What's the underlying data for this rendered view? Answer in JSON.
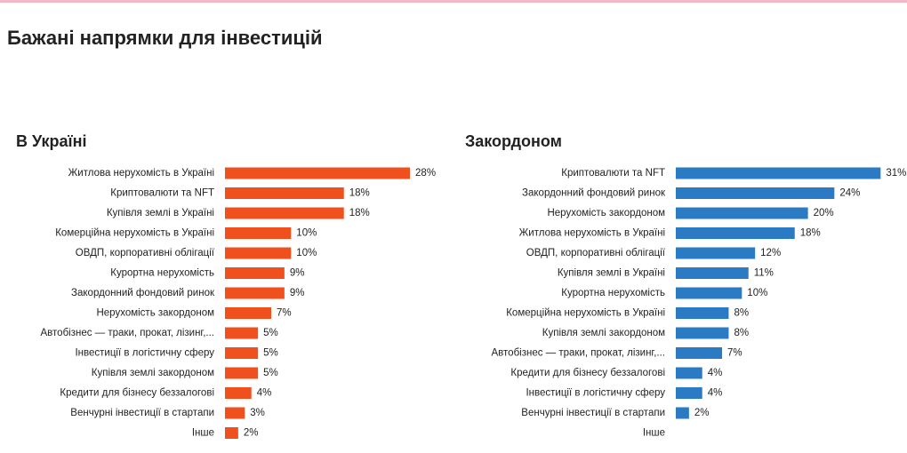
{
  "title": "Бажані напрямки для інвестицій",
  "chart_data": [
    {
      "type": "hbar",
      "title": "В Україні",
      "color": "#f0501e",
      "categories": [
        "Житлова нерухомість в Україні",
        "Криптовалюти та NFT",
        "Купівля землі в Україні",
        "Комерційна нерухомість в Україні",
        "ОВДП, корпоративні облігації",
        "Курортна нерухомість",
        "Закордонний фондовий ринок",
        "Нерухомість закордоном",
        "Автобізнес — траки, прокат, лізинг,...",
        "Інвестиції в логістичну сферу",
        "Купівля землі закордоном",
        "Кредити для бізнесу беззалогові",
        "Венчурні інвестиції в стартапи",
        "Інше"
      ],
      "values": [
        28,
        18,
        18,
        10,
        10,
        9,
        9,
        7,
        5,
        5,
        5,
        4,
        3,
        2
      ],
      "value_labels": [
        "28%",
        "18%",
        "18%",
        "10%",
        "10%",
        "9%",
        "9%",
        "7%",
        "5%",
        "5%",
        "5%",
        "4%",
        "3%",
        "2%"
      ]
    },
    {
      "type": "hbar",
      "title": "Закордоном",
      "color": "#2a7bc4",
      "categories": [
        "Криптовалюти та NFT",
        "Закордонний фондовий ринок",
        "Нерухомість закордоном",
        "Житлова нерухомість в Україні",
        "ОВДП, корпоративні облігації",
        "Купівля землі в Україні",
        "Курортна нерухомість",
        "Комерційна нерухомість в Україні",
        "Купівля землі закордоном",
        "Автобізнес — траки, прокат, лізинг,...",
        "Кредити для бізнесу беззалогові",
        "Інвестиції в логістичну сферу",
        "Венчурні інвестиції в стартапи",
        "Інше"
      ],
      "values": [
        31,
        24,
        20,
        18,
        12,
        11,
        10,
        8,
        8,
        7,
        4,
        4,
        2,
        null
      ],
      "value_labels": [
        "31%",
        "24%",
        "20%",
        "18%",
        "12%",
        "11%",
        "10%",
        "8%",
        "8%",
        "7%",
        "4%",
        "4%",
        "2%",
        null
      ]
    }
  ]
}
